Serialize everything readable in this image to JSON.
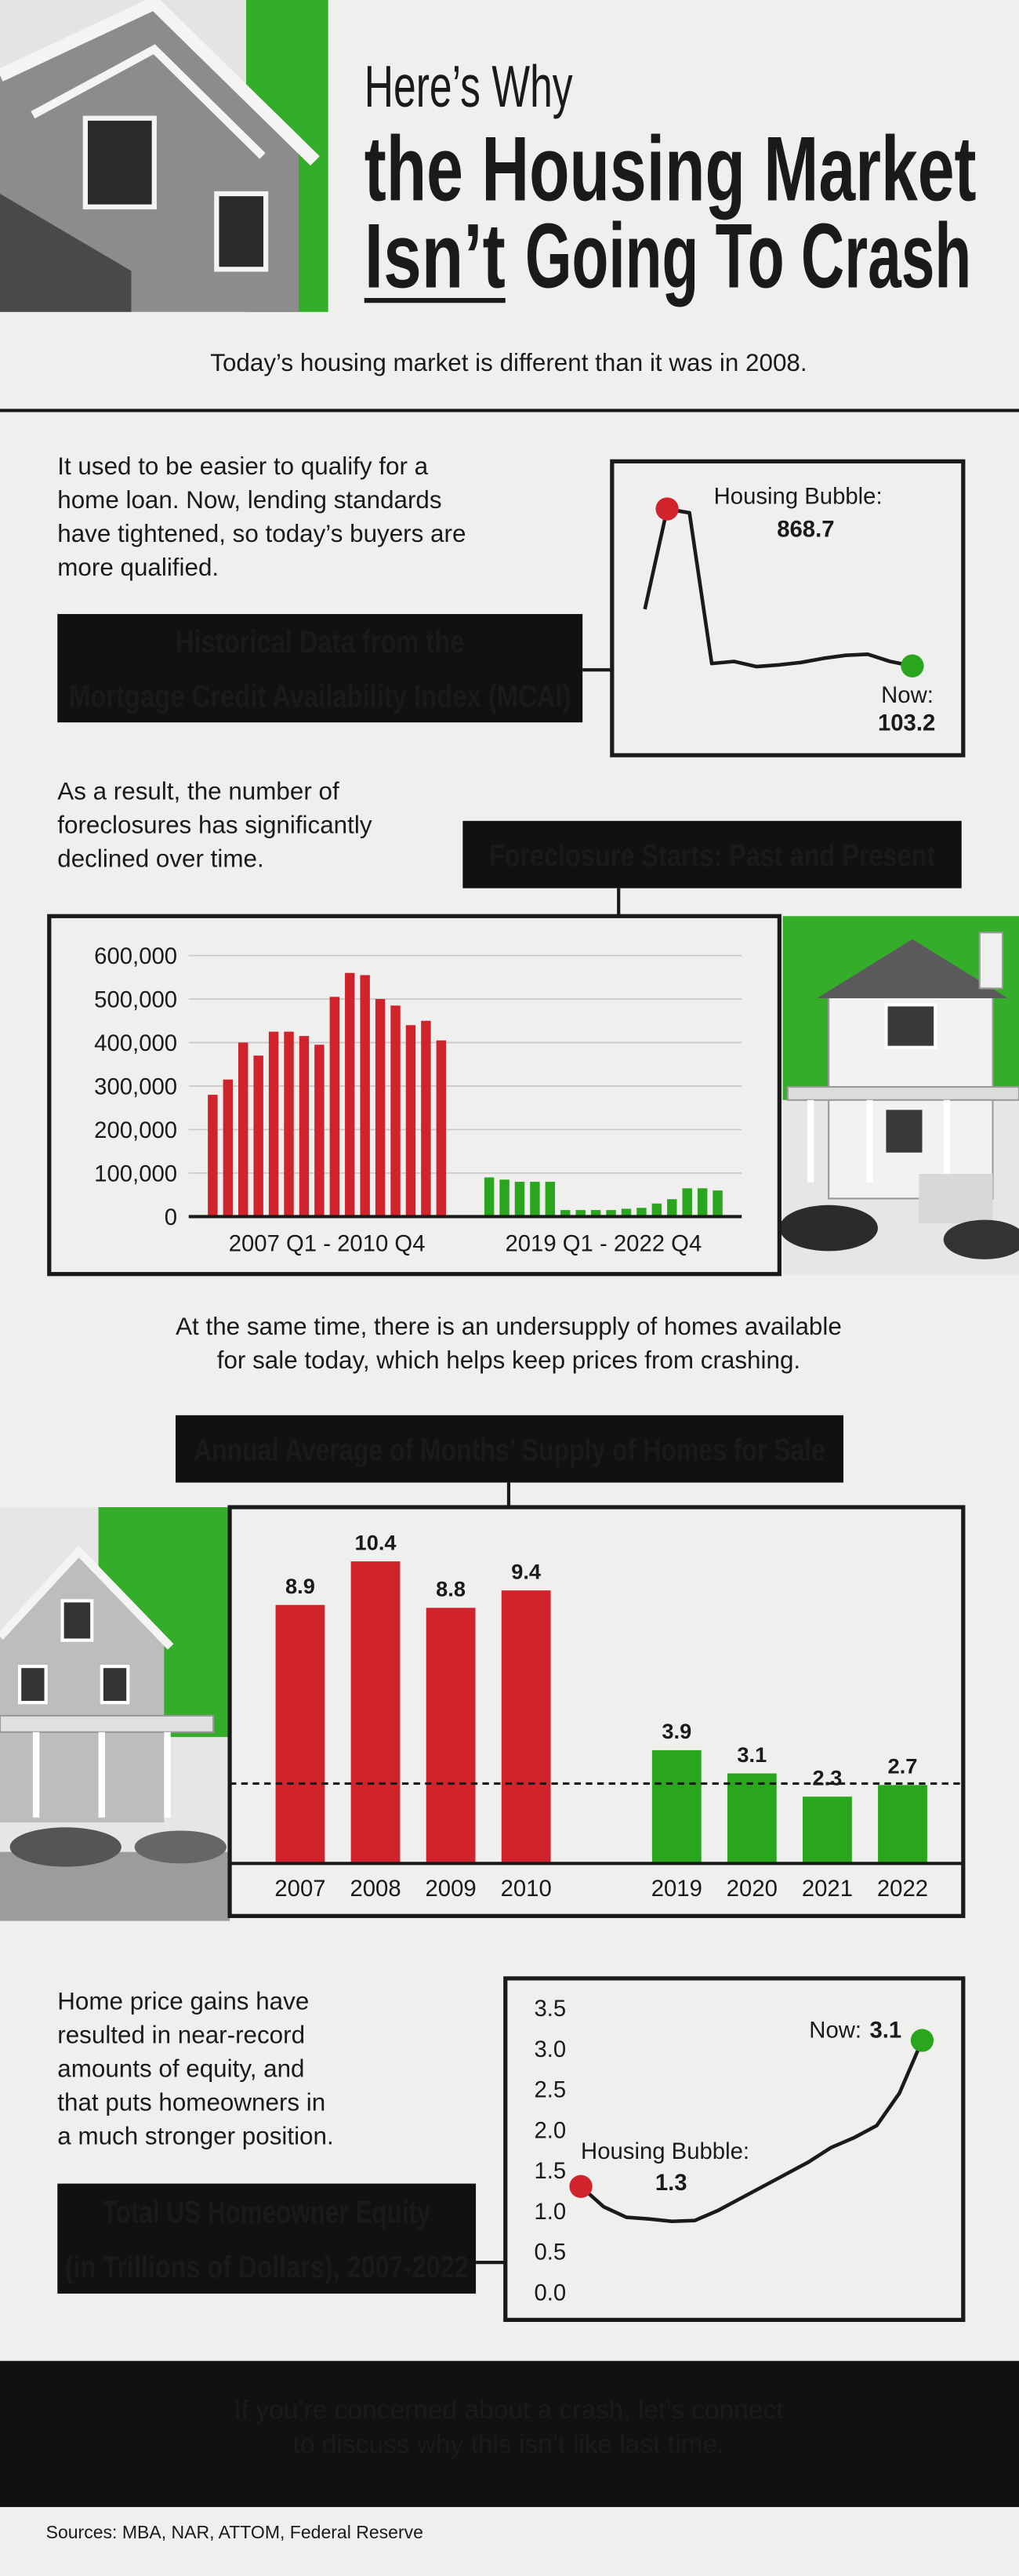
{
  "header": {
    "title_top": "Here’s Why",
    "title_middle": "the Housing Market",
    "title_bottom_underlined": "Isn’t",
    "title_bottom": "Going To Crash",
    "subtitle": "Today’s housing market is different than it was in 2008."
  },
  "paragraphs": [
    [
      "It used to be easier to qualify for a",
      "home loan. Now, lending standards",
      "have tightened, so today’s buyers are",
      "more qualified."
    ],
    [
      "As a result, the number of",
      "foreclosures has significantly",
      "declined over time."
    ],
    [
      "At the same time, there is an undersupply of  homes available",
      "for sale today, which helps keep prices from crashing."
    ],
    [
      "Home price gains have",
      "resulted in near-record",
      "amounts of equity, and",
      "that puts homeowners in",
      "a much stronger position."
    ]
  ],
  "chart_data": [
    {
      "type": "line",
      "title": [
        "Historical Data from the",
        "Mortgage Credit Availability Index (MCAI)"
      ],
      "series": [
        {
          "color": "#1a1a1a",
          "values": [
            380,
            868.7,
            850,
            115,
            125,
            100,
            108,
            120,
            140,
            155,
            160,
            125,
            103.2
          ]
        }
      ],
      "annotations": [
        "Housing Bubble:",
        "Now:"
      ],
      "marker_colors": [
        "#d0232c",
        "#2aa51e"
      ]
    },
    {
      "type": "bar",
      "title": [
        "Foreclosure Starts: Past and Present"
      ],
      "ylim": [
        0,
        600000
      ],
      "yticks": [
        0,
        {
          "value": 100000,
          "label": "100,000"
        },
        {
          "value": 200000,
          "label": "200,000"
        },
        {
          "value": 300000,
          "label": "300,000"
        },
        {
          "value": 400000,
          "label": "400,000"
        },
        {
          "value": 500000,
          "label": "500,000"
        },
        {
          "value": 600000,
          "label": "600,000"
        }
      ],
      "grid": true,
      "series": [
        {
          "name": "2007 Q1 - 2010 Q4",
          "color": "#d0232c",
          "values": [
            280000,
            315000,
            400000,
            370000,
            425000,
            425000,
            415000,
            395000,
            505000,
            560000,
            555000,
            500000,
            485000,
            440000,
            450000,
            405000
          ]
        },
        {
          "name": "2019 Q1 - 2022 Q4",
          "color": "#2aa51e",
          "values": [
            90000,
            85000,
            80000,
            80000,
            80000,
            15000,
            15000,
            15000,
            15000,
            18000,
            20000,
            30000,
            40000,
            65000,
            65000,
            60000
          ]
        }
      ]
    },
    {
      "type": "bar",
      "title": [
        "Annual Average of Months’ Supply of Homes for Sale"
      ],
      "categories": [
        "2007",
        "2008",
        "2009",
        "2010",
        "2019",
        "2020",
        "2021",
        "2022"
      ],
      "values": [
        8.9,
        10.4,
        8.8,
        9.4,
        3.9,
        3.1,
        2.3,
        2.7
      ],
      "colors": [
        "#d0232c",
        "#d0232c",
        "#d0232c",
        "#d0232c",
        "#2aa51e",
        "#2aa51e",
        "#2aa51e",
        "#2aa51e"
      ],
      "reference_line": 2.75
    },
    {
      "type": "line",
      "title": [
        "Total US Homeowner Equity",
        "(in Trillions of Dollars), 2007-2022"
      ],
      "ylim": [
        0,
        3.5
      ],
      "yticks": [
        {
          "value": 0,
          "label": "0.0"
        },
        0.5,
        {
          "value": 1,
          "label": "1.0"
        },
        1.5,
        {
          "value": 2,
          "label": "2.0"
        },
        2.5,
        {
          "value": 3,
          "label": "3.0"
        },
        3.5
      ],
      "series": [
        {
          "color": "#1a1a1a",
          "values": [
            1.3,
            1.05,
            0.92,
            0.9,
            0.87,
            0.88,
            1.0,
            1.15,
            1.3,
            1.45,
            1.6,
            1.78,
            1.9,
            2.05,
            2.45,
            3.1
          ]
        }
      ],
      "annotations": [
        "Housing Bubble:",
        "Now:"
      ],
      "marker_colors": [
        "#d0232c",
        "#2aa51e"
      ]
    }
  ],
  "footer": {
    "cta": [
      "If you’re concerned about a crash, let’s connect",
      "to discuss why this isn’t like last time."
    ],
    "sources": "Sources: MBA, NAR, ATTOM, Federal Reserve"
  }
}
